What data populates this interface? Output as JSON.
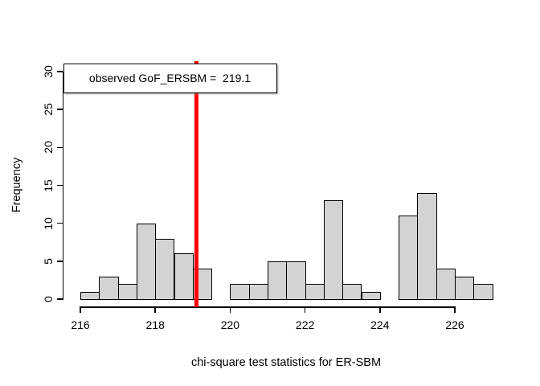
{
  "chart_data": {
    "type": "bar",
    "subtype": "histogram",
    "title": "",
    "xlabel": "chi-square test statistics for ER-SBM",
    "ylabel": "Frequency",
    "bin_width": 0.5,
    "bin_start": 216,
    "bin_edges": [
      216,
      216.5,
      217,
      217.5,
      218,
      218.5,
      219,
      219.5,
      220,
      220.5,
      221,
      221.5,
      222,
      222.5,
      223,
      223.5,
      224,
      224.5,
      225,
      225.5,
      226,
      226.5,
      227
    ],
    "frequencies": [
      1,
      3,
      2,
      10,
      8,
      6,
      4,
      0,
      2,
      2,
      5,
      5,
      2,
      13,
      2,
      1,
      0,
      11,
      14,
      4,
      3,
      2
    ],
    "x_ticks": [
      216,
      218,
      220,
      222,
      224,
      226
    ],
    "y_ticks": [
      0,
      5,
      10,
      15,
      20,
      25,
      30
    ],
    "xlim": [
      216,
      227
    ],
    "ylim": [
      0,
      30
    ],
    "grid": false,
    "legend_position": "topleft",
    "bar_fill_color": "#d3d3d3",
    "bar_border_color": "#000000",
    "observed_line": {
      "value": 219.1,
      "color": "#ff0000",
      "label": "observed GoF_ERSBM =  219.1"
    }
  }
}
